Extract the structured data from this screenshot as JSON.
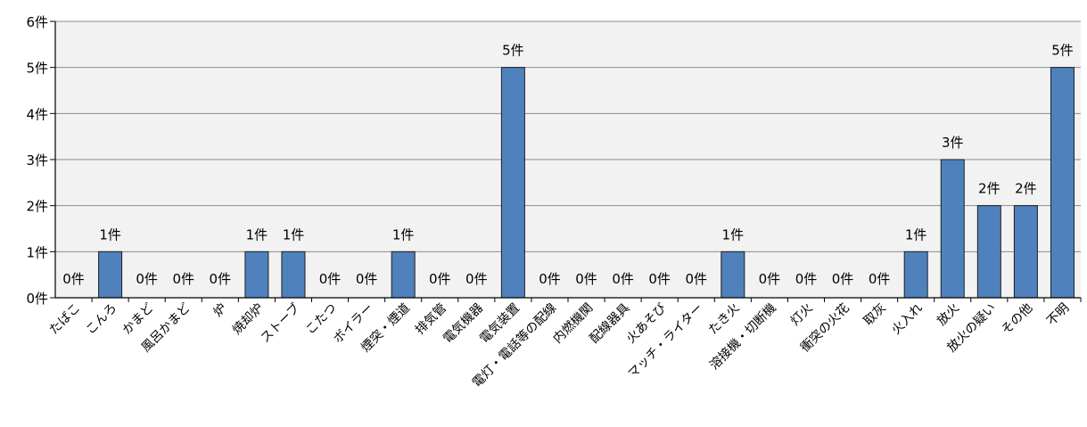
{
  "chart_data": {
    "type": "bar",
    "title": "",
    "xlabel": "",
    "ylabel": "",
    "ylim": [
      0,
      6
    ],
    "grid": true,
    "legend": "none",
    "y_tick_labels": [
      "0件",
      "1件",
      "2件",
      "3件",
      "4件",
      "5件",
      "6件"
    ],
    "value_suffix": "件",
    "categories": [
      "たばこ",
      "こんろ",
      "かまど",
      "風呂かまど",
      "炉",
      "焼却炉",
      "ストーブ",
      "こたつ",
      "ボイラー",
      "煙突・煙道",
      "排気管",
      "電気機器",
      "電気装置",
      "電灯・電話等の配線",
      "内燃機関",
      "配線器具",
      "火あそび",
      "マッチ・ライター",
      "たき火",
      "溶接機・切断機",
      "灯火",
      "衝突の火花",
      "取灰",
      "火入れ",
      "放火",
      "放火の疑い",
      "その他",
      "不明"
    ],
    "values": [
      0,
      1,
      0,
      0,
      0,
      1,
      1,
      0,
      0,
      1,
      0,
      0,
      5,
      0,
      0,
      0,
      0,
      0,
      1,
      0,
      0,
      0,
      0,
      1,
      3,
      2,
      2,
      5
    ],
    "data_labels": [
      "0件",
      "1件",
      "0件",
      "0件",
      "0件",
      "1件",
      "1件",
      "0件",
      "0件",
      "1件",
      "0件",
      "0件",
      "5件",
      "0件",
      "0件",
      "0件",
      "0件",
      "0件",
      "1件",
      "0件",
      "0件",
      "0件",
      "0件",
      "1件",
      "3件",
      "2件",
      "2件",
      "5件"
    ],
    "colors": {
      "bar_fill": "#4f81bd",
      "bar_stroke": "#1f1f1f",
      "plot_background": "#f2f2f2",
      "gridline": "#8c8c8c",
      "axis": "#000000"
    }
  }
}
